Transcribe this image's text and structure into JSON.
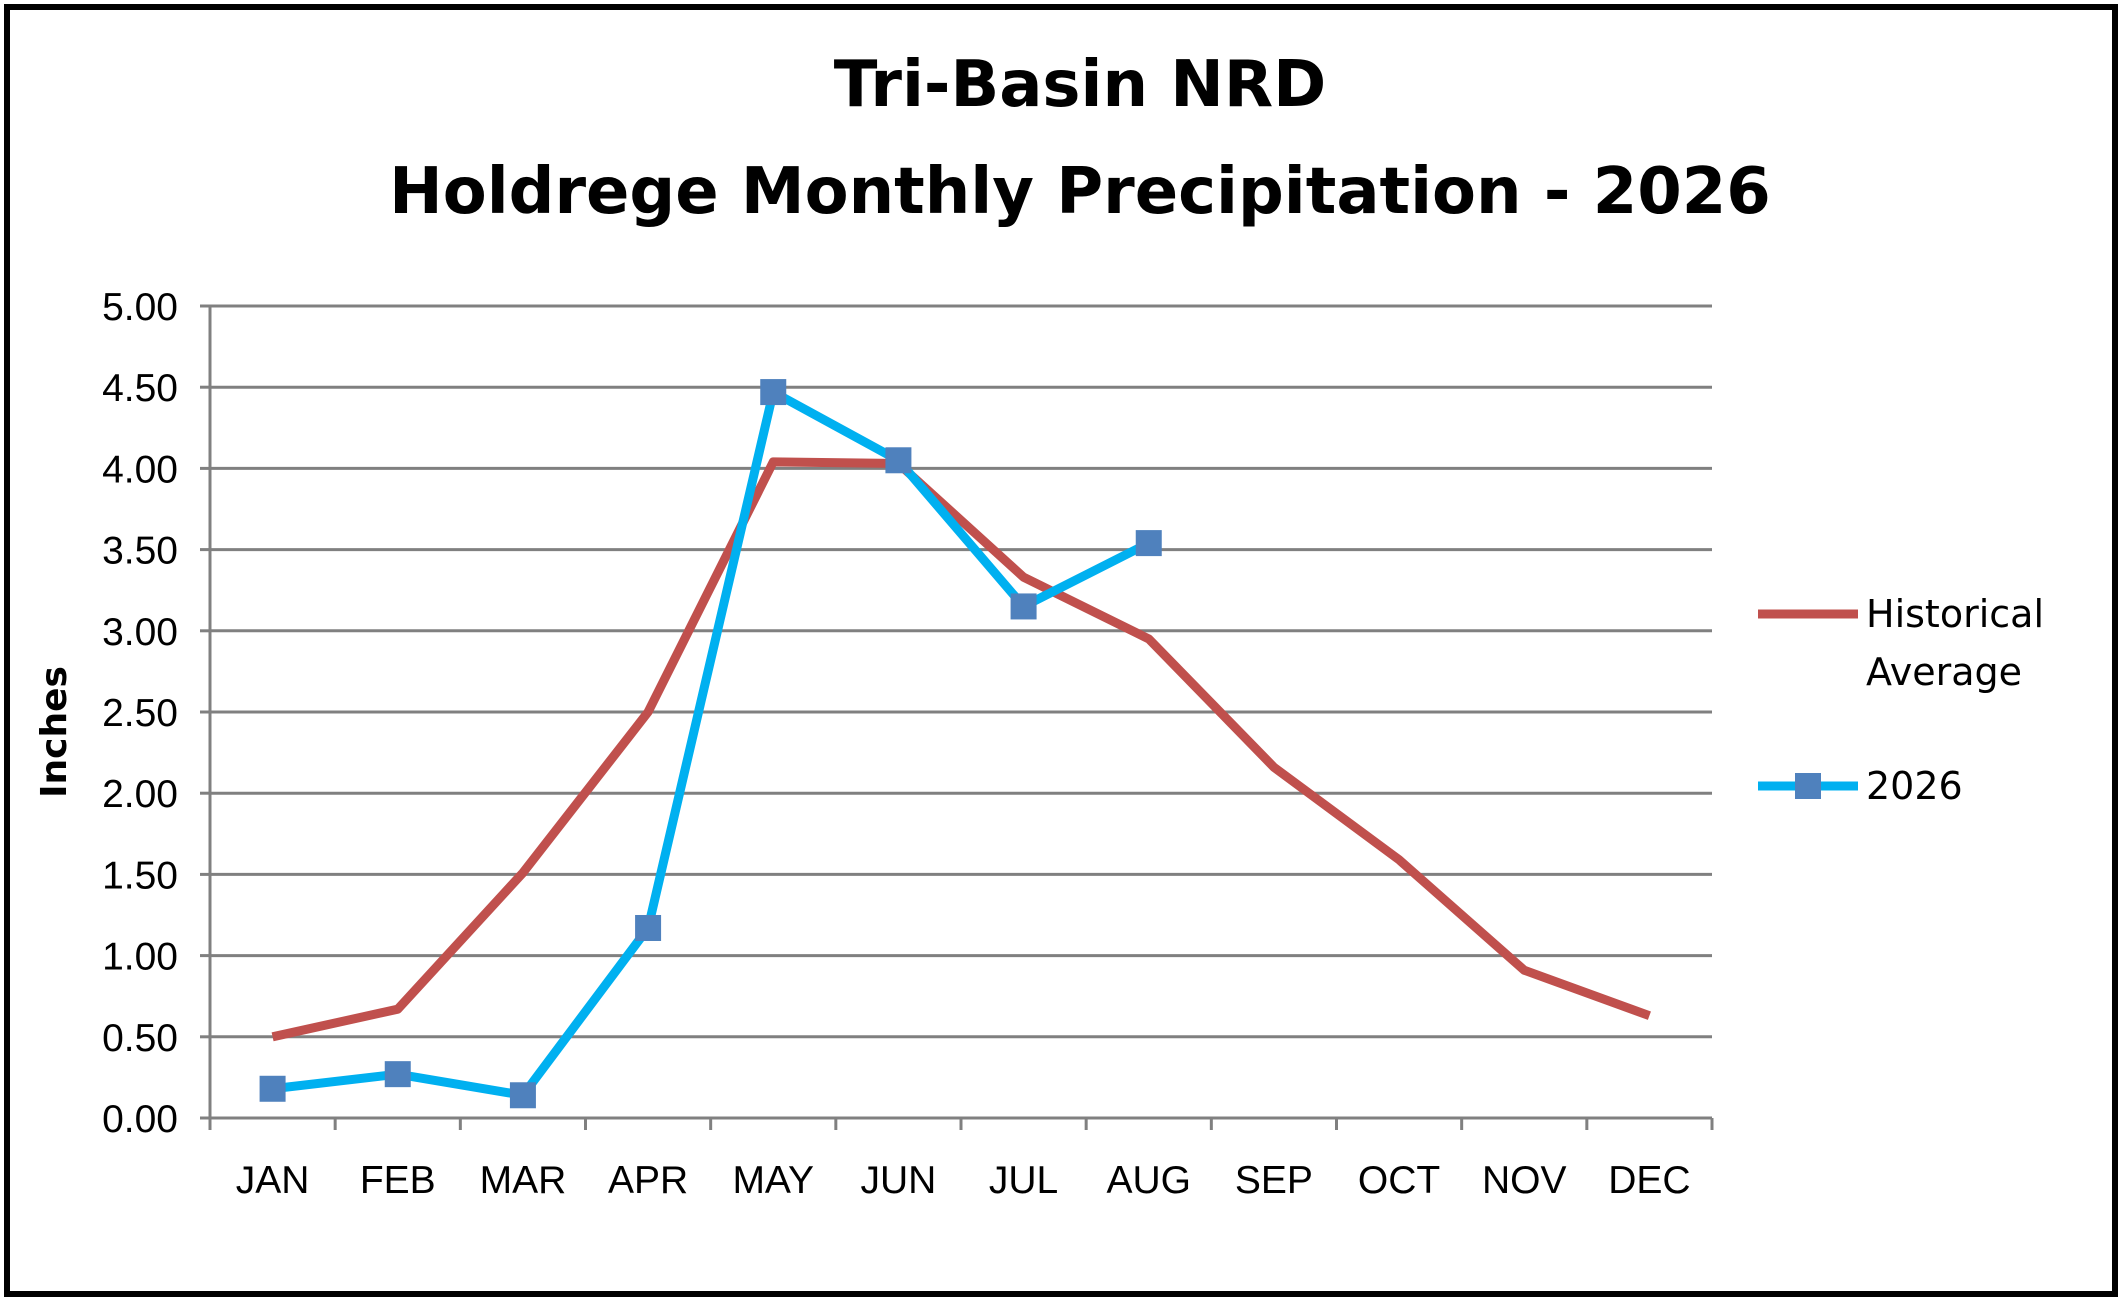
{
  "chart_data": {
    "type": "line",
    "title": [
      "Tri-Basin NRD",
      "Holdrege Monthly Precipitation - 2026"
    ],
    "xlabel": "",
    "ylabel": "Inches",
    "ylim": [
      0,
      5
    ],
    "yticks": [
      "0.00",
      "0.50",
      "1.00",
      "1.50",
      "2.00",
      "2.50",
      "3.00",
      "3.50",
      "4.00",
      "4.50",
      "5.00"
    ],
    "categories": [
      "JAN",
      "FEB",
      "MAR",
      "APR",
      "MAY",
      "JUN",
      "JUL",
      "AUG",
      "SEP",
      "OCT",
      "NOV",
      "DEC"
    ],
    "grid": "horizontal",
    "legend": "right",
    "series": [
      {
        "name": [
          "Historical",
          "Average"
        ],
        "color": "#C0504D",
        "marker": "none",
        "values": [
          0.5,
          0.67,
          1.51,
          2.5,
          4.04,
          4.03,
          3.33,
          2.95,
          2.16,
          1.59,
          0.91,
          0.63
        ]
      },
      {
        "name": [
          "2026"
        ],
        "color": "#00B0F0",
        "marker": "square",
        "marker_color": "#4F81BD",
        "values": [
          0.18,
          0.27,
          0.14,
          1.17,
          4.47,
          4.05,
          3.15,
          3.54,
          null,
          null,
          null,
          null
        ]
      }
    ]
  }
}
